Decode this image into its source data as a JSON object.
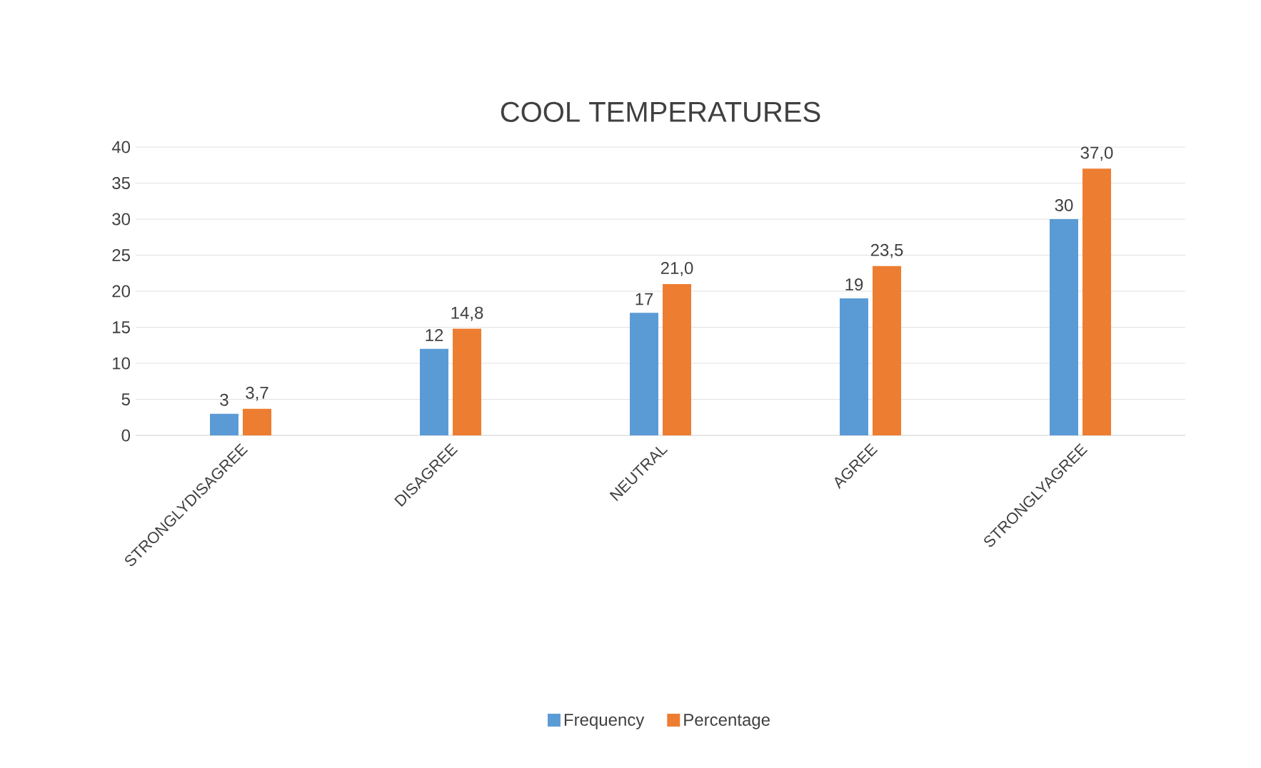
{
  "chart_data": {
    "type": "bar",
    "title": "COOL TEMPERATURES",
    "categories": [
      "STRONGLYDISAGREE",
      "DISAGREE",
      "NEUTRAL",
      "AGREE",
      "STRONGLYAGREE"
    ],
    "series": [
      {
        "name": "Frequency",
        "color": "#5b9bd5",
        "values": [
          3,
          12,
          17,
          19,
          30
        ],
        "value_labels": [
          "3",
          "12",
          "17",
          "19",
          "30"
        ]
      },
      {
        "name": "Percentage",
        "color": "#ed7d31",
        "values": [
          3.7,
          14.8,
          21.0,
          23.5,
          37.0
        ],
        "value_labels": [
          "3,7",
          "14,8",
          "21,0",
          "23,5",
          "37,0"
        ]
      }
    ],
    "ylim": [
      0,
      40
    ],
    "yticks": [
      0,
      5,
      10,
      15,
      20,
      25,
      30,
      35,
      40
    ],
    "grid": "y",
    "legend": "bottom"
  }
}
